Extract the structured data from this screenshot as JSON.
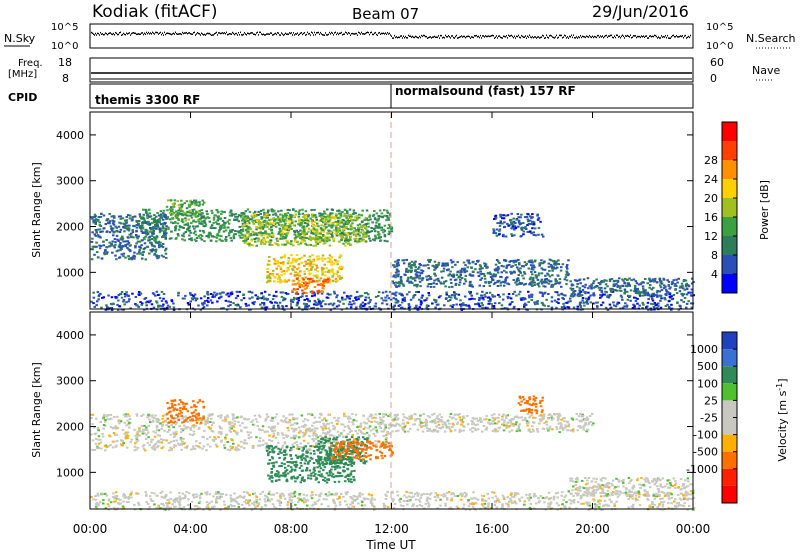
{
  "header": {
    "station": "Kodiak (fitACF)",
    "beam": "Beam 07",
    "date": "29/Jun/2016"
  },
  "noise_panel": {
    "left_label": "N.Sky",
    "right_label": "N.Search",
    "ticks_left": [
      "10^5",
      "10^0"
    ],
    "ticks_right": [
      "10^5",
      "10^0"
    ]
  },
  "freq_panel": {
    "left_label_1": "Freq.",
    "left_label_2": "[MHz]",
    "right_label": "Nave",
    "ticks_left": [
      "18",
      "8"
    ],
    "ticks_right": [
      "60",
      "0"
    ]
  },
  "cpid_panel": {
    "label": "CPID",
    "modes": [
      {
        "name": "themis 3300 RF",
        "start_hour": 0
      },
      {
        "name": "normalsound (fast) 157 RF",
        "start_hour": 12
      }
    ]
  },
  "x_axis": {
    "label": "Time UT",
    "ticks": [
      "00:00",
      "04:00",
      "08:00",
      "12:00",
      "16:00",
      "20:00",
      "00:00"
    ]
  },
  "colors": {
    "power": [
      "#0000ff",
      "#2a4fb8",
      "#2e7d5a",
      "#3aa042",
      "#a0c020",
      "#ffd000",
      "#ff9000",
      "#ff4000",
      "#ff0000"
    ],
    "velocity": [
      "#2040c0",
      "#3a70d0",
      "#2e8b57",
      "#50c030",
      "#c8c8c0",
      "#c8c8c0",
      "#ffb000",
      "#ff7000",
      "#ff2000",
      "#ff0000"
    ]
  },
  "chart_data": [
    {
      "type": "heatmap",
      "title": "",
      "xlabel": "Time UT",
      "ylabel": "Slant Range [km]",
      "xlim": [
        0,
        24
      ],
      "ylim": [
        200,
        4500
      ],
      "yticks": [
        1000,
        2000,
        3000,
        4000
      ],
      "colorbar": {
        "label": "Power [dB]",
        "range": [
          0,
          32
        ],
        "ticks": [
          4,
          8,
          12,
          16,
          20,
          24,
          28
        ]
      },
      "regions": [
        {
          "t": [
            0.0,
            24.0
          ],
          "r": [
            200,
            600
          ],
          "value": 6
        },
        {
          "t": [
            2.0,
            12.0
          ],
          "r": [
            1700,
            2400
          ],
          "value": 12
        },
        {
          "t": [
            6.0,
            11.0
          ],
          "r": [
            1600,
            2300
          ],
          "value": 18
        },
        {
          "t": [
            7.0,
            10.0
          ],
          "r": [
            800,
            1400
          ],
          "value": 22
        },
        {
          "t": [
            8.0,
            9.5
          ],
          "r": [
            550,
            900
          ],
          "value": 28
        },
        {
          "t": [
            3.0,
            4.5
          ],
          "r": [
            2100,
            2600
          ],
          "value": 14
        },
        {
          "t": [
            0.0,
            3.0
          ],
          "r": [
            1300,
            2300
          ],
          "value": 8
        },
        {
          "t": [
            12.0,
            19.0
          ],
          "r": [
            700,
            1300
          ],
          "value": 8
        },
        {
          "t": [
            19.0,
            24.0
          ],
          "r": [
            500,
            900
          ],
          "value": 8
        },
        {
          "t": [
            16.0,
            18.0
          ],
          "r": [
            1800,
            2300
          ],
          "value": 6
        }
      ]
    },
    {
      "type": "heatmap",
      "title": "",
      "xlabel": "Time UT",
      "ylabel": "Slant Range [km]",
      "xlim": [
        0,
        24
      ],
      "ylim": [
        200,
        4500
      ],
      "yticks": [
        1000,
        2000,
        3000,
        4000
      ],
      "colorbar": {
        "label": "Velocity [m s^-1]",
        "ticks": [
          1000,
          500,
          100,
          25,
          -25,
          -100,
          -500,
          -1000
        ]
      },
      "regions": [
        {
          "t": [
            0.0,
            24.0
          ],
          "r": [
            200,
            600
          ],
          "value": 0
        },
        {
          "t": [
            0.0,
            12.0
          ],
          "r": [
            1500,
            2300
          ],
          "value": 0
        },
        {
          "t": [
            12.0,
            20.0
          ],
          "r": [
            1900,
            2300
          ],
          "value": 0
        },
        {
          "t": [
            19.0,
            24.0
          ],
          "r": [
            500,
            900
          ],
          "value": 0
        },
        {
          "t": [
            7.0,
            10.5
          ],
          "r": [
            800,
            1600
          ],
          "value": 150
        },
        {
          "t": [
            9.0,
            11.0
          ],
          "r": [
            1200,
            1800
          ],
          "value": 300
        },
        {
          "t": [
            3.0,
            4.5
          ],
          "r": [
            2100,
            2600
          ],
          "value": -150
        },
        {
          "t": [
            9.5,
            12.0
          ],
          "r": [
            1300,
            1700
          ],
          "value": -200
        },
        {
          "t": [
            17.0,
            18.0
          ],
          "r": [
            2300,
            2700
          ],
          "value": -400
        }
      ]
    }
  ]
}
